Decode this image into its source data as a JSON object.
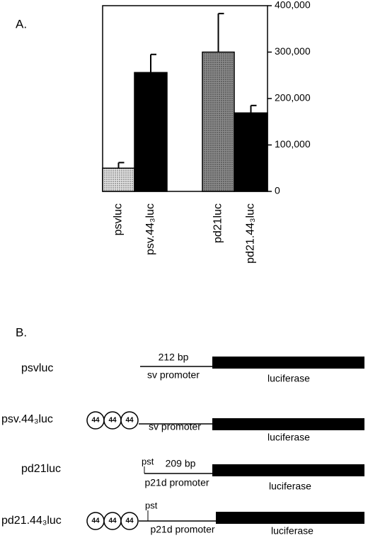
{
  "panel_a_label": "A.",
  "panel_b_label": "B.",
  "chart_data": {
    "type": "bar",
    "categories": [
      "psvluc",
      "psv.44₃luc",
      "pd21luc",
      "pd21.44₃luc"
    ],
    "values": [
      50000,
      256000,
      300000,
      169000
    ],
    "errors": [
      12000,
      39000,
      83000,
      16000
    ],
    "colors": [
      "#e4e4e4",
      "#000000",
      "#8c8c8c",
      "#000000"
    ],
    "ylim": [
      0,
      400000
    ],
    "yticks": [
      0,
      {
        "value": 100000,
        "label": "100,000"
      },
      {
        "value": 200000,
        "label": "200,000"
      },
      {
        "value": 300000,
        "label": "300,000"
      },
      {
        "value": 400000,
        "label": "400,000"
      }
    ]
  },
  "diagram": {
    "rows": [
      {
        "name": "psvluc",
        "elements": [],
        "pst": null,
        "size": "212 bp",
        "promoter": "sv promoter",
        "gene": "luciferase"
      },
      {
        "name": "psv.44₃luc",
        "elements": [
          "44",
          "44",
          "44"
        ],
        "pst": null,
        "size": null,
        "promoter": "sv promoter",
        "gene": "luciferase"
      },
      {
        "name": "pd21luc",
        "elements": [],
        "pst": "pst",
        "size": "209 bp",
        "promoter": "p21d promoter",
        "gene": "luciferase"
      },
      {
        "name": "pd21.44₃luc",
        "elements": [
          "44",
          "44",
          "44"
        ],
        "pst": "pst",
        "size": null,
        "promoter": "p21d promoter",
        "gene": "luciferase"
      }
    ]
  }
}
